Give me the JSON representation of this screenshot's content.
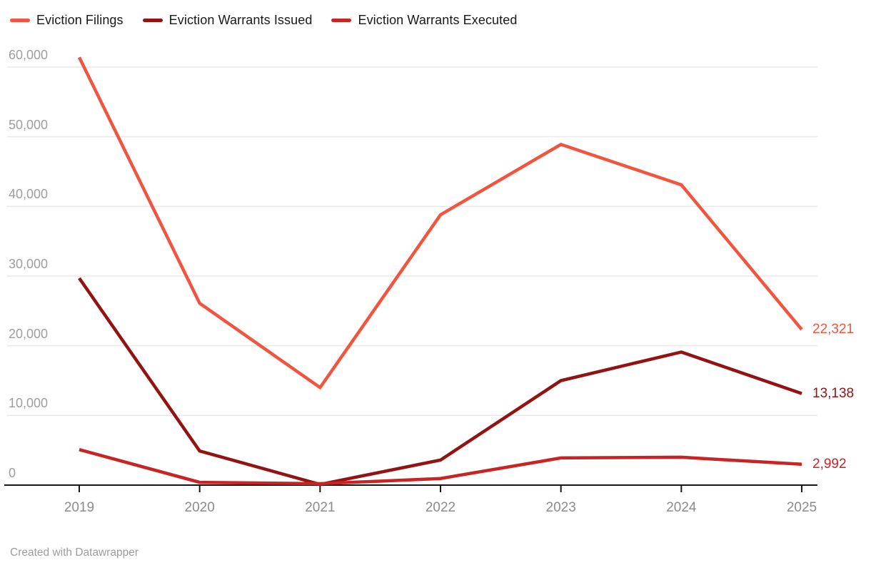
{
  "legend": {
    "items": [
      {
        "label": "Eviction Filings",
        "color": "#F15540"
      },
      {
        "label": "Eviction Warrants Issued",
        "color": "#931212"
      },
      {
        "label": "Eviction Warrants Executed",
        "color": "#C92424"
      }
    ]
  },
  "chart_data": {
    "type": "line",
    "x": [
      2019,
      2020,
      2021,
      2022,
      2023,
      2024,
      2025
    ],
    "series": [
      {
        "name": "Eviction Filings",
        "color": "#F15540",
        "values": [
          61400,
          26100,
          14000,
          38800,
          48900,
          43100,
          22321
        ],
        "end_label": "22,321"
      },
      {
        "name": "Eviction Warrants Issued",
        "color": "#931212",
        "values": [
          29700,
          4900,
          100,
          3600,
          15000,
          19100,
          13138
        ],
        "end_label": "13,138"
      },
      {
        "name": "Eviction Warrants Executed",
        "color": "#C92424",
        "values": [
          5100,
          400,
          200,
          950,
          3900,
          4000,
          2992
        ],
        "end_label": "2,992"
      }
    ],
    "y_axis": {
      "range": [
        0,
        60000
      ],
      "ticks": [
        0,
        10000,
        20000,
        30000,
        40000,
        50000,
        60000
      ],
      "tick_labels": [
        "0",
        "10,000",
        "20,000",
        "30,000",
        "40,000",
        "50,000",
        "60,000"
      ],
      "grid": true
    },
    "x_axis": {
      "tick_labels": [
        "2019",
        "2020",
        "2021",
        "2022",
        "2023",
        "2024",
        "2025"
      ]
    },
    "legend_position": "top",
    "title": "",
    "xlabel": "",
    "ylabel": ""
  },
  "colors": {
    "background": "#ffffff",
    "grid": "#e9e9e9",
    "axis": "#161616",
    "y_label_text": "#9e9e9e",
    "x_label_text": "#8b8b8b",
    "legend_text": "#181818",
    "footer_text": "#9c9c9c"
  },
  "footer": {
    "credit": "Created with Datawrapper"
  }
}
